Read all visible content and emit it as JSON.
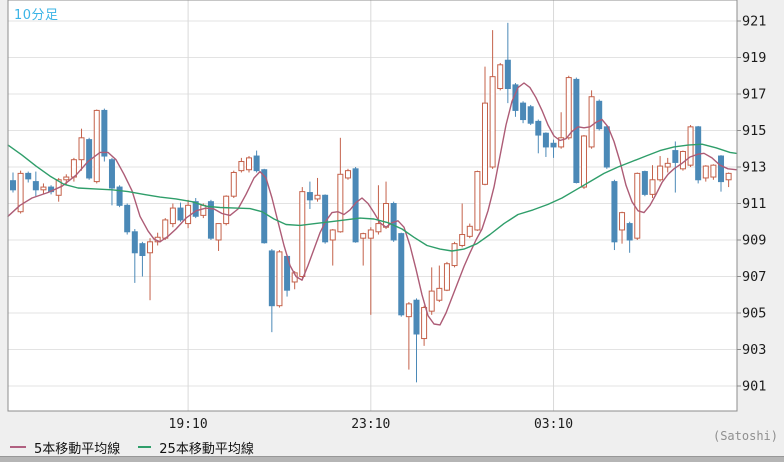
{
  "header": {
    "interval_label": "10分足"
  },
  "legend": {
    "ma5_label": "5本移動平均線",
    "ma5_color": "#b06080",
    "ma25_label": "25本移動平均線",
    "ma25_color": "#2f9e6a"
  },
  "footer": {
    "unit_label": "(Satoshi)"
  },
  "chart_data": {
    "type": "candlestick",
    "title": "10分足",
    "unit": "(Satoshi)",
    "grid": true,
    "legend_position": "bottom-left",
    "y_ticks": [
      921,
      919,
      917,
      915,
      913,
      911,
      909,
      907,
      905,
      903,
      901
    ],
    "ylim": [
      899.6,
      922.2
    ],
    "x_ticks": [
      {
        "label": "19:10",
        "index": 23
      },
      {
        "label": "23:10",
        "index": 47
      },
      {
        "label": "03:10",
        "index": 71
      }
    ],
    "colors": {
      "up": "#c4614a",
      "down": "#4b89b7",
      "ma5": "#ad5c76",
      "ma25": "#2f9e6a"
    },
    "candles_format": [
      "time",
      "open",
      "high",
      "low",
      "close"
    ],
    "candles": [
      [
        "15:20",
        912.25,
        912.7,
        911.6,
        911.75
      ],
      [
        "15:30",
        910.55,
        912.8,
        910.45,
        912.65
      ],
      [
        "15:40",
        912.65,
        912.75,
        912.15,
        912.35
      ],
      [
        "15:50",
        912.2,
        912.75,
        911.4,
        911.75
      ],
      [
        "16:00",
        911.75,
        912.1,
        911.5,
        911.9
      ],
      [
        "16:10",
        911.9,
        912.0,
        911.5,
        911.65
      ],
      [
        "16:20",
        911.45,
        912.4,
        911.1,
        912.3
      ],
      [
        "16:30",
        912.3,
        912.6,
        912.0,
        912.45
      ],
      [
        "16:40",
        912.45,
        913.5,
        912.2,
        913.4
      ],
      [
        "16:50",
        913.4,
        915.1,
        912.8,
        914.6
      ],
      [
        "17:00",
        914.5,
        914.6,
        912.3,
        912.4
      ],
      [
        "17:10",
        912.2,
        916.15,
        912.1,
        916.1
      ],
      [
        "17:20",
        916.1,
        916.2,
        913.3,
        913.6
      ],
      [
        "17:30",
        913.4,
        913.5,
        910.9,
        911.85
      ],
      [
        "17:40",
        911.9,
        912.0,
        910.8,
        910.9
      ],
      [
        "17:50",
        910.9,
        911.0,
        909.3,
        909.45
      ],
      [
        "18:00",
        909.45,
        909.6,
        906.65,
        908.3
      ],
      [
        "18:10",
        908.8,
        908.9,
        907.0,
        908.15
      ],
      [
        "18:20",
        908.3,
        909.1,
        905.7,
        908.9
      ],
      [
        "18:30",
        908.9,
        909.4,
        908.7,
        909.15
      ],
      [
        "18:40",
        909.1,
        910.2,
        909.0,
        910.1
      ],
      [
        "18:50",
        909.9,
        911.0,
        909.7,
        910.75
      ],
      [
        "19:00",
        910.75,
        911.05,
        910.0,
        910.1
      ],
      [
        "19:10",
        909.9,
        911.2,
        909.65,
        910.9
      ],
      [
        "19:20",
        911.1,
        911.3,
        910.2,
        910.3
      ],
      [
        "19:30",
        910.35,
        911.0,
        910.2,
        910.9
      ],
      [
        "19:40",
        911.1,
        911.2,
        909.0,
        909.1
      ],
      [
        "19:50",
        909.0,
        909.9,
        908.4,
        909.9
      ],
      [
        "20:00",
        909.9,
        911.45,
        909.8,
        911.4
      ],
      [
        "20:10",
        911.4,
        912.8,
        911.3,
        912.7
      ],
      [
        "20:20",
        912.8,
        913.5,
        912.7,
        913.3
      ],
      [
        "20:30",
        912.85,
        913.6,
        912.7,
        913.5
      ],
      [
        "20:40",
        913.6,
        913.9,
        912.7,
        912.8
      ],
      [
        "20:50",
        912.85,
        912.9,
        908.8,
        908.85
      ],
      [
        "21:00",
        908.4,
        908.5,
        903.95,
        905.4
      ],
      [
        "21:10",
        905.4,
        908.45,
        905.3,
        908.35
      ],
      [
        "21:20",
        908.1,
        908.2,
        905.9,
        906.25
      ],
      [
        "21:30",
        906.7,
        907.3,
        906.3,
        907.2
      ],
      [
        "21:40",
        907.0,
        911.9,
        906.9,
        911.65
      ],
      [
        "21:50",
        911.6,
        912.2,
        910.7,
        911.2
      ],
      [
        "22:00",
        911.25,
        912.4,
        911.1,
        911.45
      ],
      [
        "22:10",
        911.45,
        911.5,
        908.8,
        908.9
      ],
      [
        "22:20",
        909.0,
        909.6,
        907.6,
        909.55
      ],
      [
        "22:30",
        909.45,
        914.6,
        909.4,
        912.6
      ],
      [
        "22:40",
        912.4,
        912.9,
        912.3,
        912.8
      ],
      [
        "22:50",
        912.9,
        913.0,
        908.85,
        908.9
      ],
      [
        "23:00",
        909.1,
        909.4,
        907.6,
        909.35
      ],
      [
        "23:10",
        909.1,
        909.7,
        904.9,
        909.55
      ],
      [
        "23:20",
        909.45,
        912.0,
        909.3,
        909.9
      ],
      [
        "23:30",
        909.7,
        912.2,
        909.6,
        911.0
      ],
      [
        "23:40",
        911.0,
        911.1,
        908.9,
        909.0
      ],
      [
        "23:50",
        909.35,
        909.4,
        904.8,
        904.9
      ],
      [
        "00:00",
        904.8,
        905.6,
        901.9,
        905.5
      ],
      [
        "00:10",
        905.7,
        905.8,
        901.2,
        903.85
      ],
      [
        "00:20",
        903.6,
        905.4,
        903.2,
        905.3
      ],
      [
        "00:30",
        905.1,
        907.5,
        904.9,
        906.2
      ],
      [
        "00:40",
        905.7,
        907.6,
        905.6,
        906.35
      ],
      [
        "00:50",
        906.25,
        907.8,
        906.2,
        907.7
      ],
      [
        "01:00",
        907.6,
        908.9,
        907.5,
        908.8
      ],
      [
        "01:10",
        908.7,
        911.0,
        908.6,
        909.3
      ],
      [
        "01:20",
        909.2,
        909.9,
        909.1,
        909.75
      ],
      [
        "01:30",
        909.55,
        912.8,
        909.5,
        912.75
      ],
      [
        "01:40",
        912.05,
        918.5,
        912.0,
        916.5
      ],
      [
        "01:50",
        913.0,
        920.5,
        912.9,
        917.95
      ],
      [
        "02:00",
        917.3,
        918.7,
        917.2,
        918.6
      ],
      [
        "02:10",
        918.85,
        920.9,
        916.5,
        917.3
      ],
      [
        "02:20",
        917.5,
        917.6,
        915.75,
        916.1
      ],
      [
        "02:30",
        916.5,
        916.6,
        915.4,
        915.6
      ],
      [
        "02:40",
        916.3,
        916.4,
        915.3,
        915.4
      ],
      [
        "02:50",
        915.5,
        915.6,
        913.75,
        914.75
      ],
      [
        "03:00",
        914.85,
        914.9,
        913.55,
        914.1
      ],
      [
        "03:10",
        914.3,
        914.5,
        913.5,
        914.1
      ],
      [
        "03:20",
        914.1,
        916.0,
        914.0,
        914.6
      ],
      [
        "03:30",
        914.6,
        918.0,
        914.5,
        917.9
      ],
      [
        "03:40",
        917.8,
        917.9,
        912.1,
        912.15
      ],
      [
        "03:50",
        911.9,
        914.75,
        911.8,
        914.7
      ],
      [
        "04:00",
        914.1,
        917.2,
        914.0,
        916.85
      ],
      [
        "04:10",
        916.6,
        916.7,
        915.0,
        915.1
      ],
      [
        "04:20",
        915.2,
        915.3,
        912.9,
        913.0
      ],
      [
        "04:30",
        912.2,
        912.3,
        908.45,
        908.9
      ],
      [
        "04:40",
        909.55,
        910.55,
        908.8,
        910.5
      ],
      [
        "04:50",
        909.9,
        910.0,
        908.3,
        909.0
      ],
      [
        "05:00",
        909.1,
        912.7,
        909.0,
        912.65
      ],
      [
        "05:10",
        912.75,
        912.8,
        911.4,
        911.5
      ],
      [
        "05:20",
        911.5,
        913.1,
        911.3,
        912.3
      ],
      [
        "05:30",
        912.3,
        913.6,
        912.2,
        913.05
      ],
      [
        "05:40",
        913.0,
        913.5,
        912.7,
        913.2
      ],
      [
        "05:50",
        913.9,
        914.4,
        911.6,
        913.25
      ],
      [
        "06:00",
        912.9,
        913.9,
        912.8,
        913.85
      ],
      [
        "06:10",
        913.1,
        915.3,
        913.0,
        915.2
      ],
      [
        "06:20",
        915.2,
        915.25,
        912.1,
        912.3
      ],
      [
        "06:30",
        912.4,
        913.1,
        912.2,
        913.05
      ],
      [
        "06:40",
        912.45,
        913.15,
        912.3,
        913.1
      ],
      [
        "06:50",
        913.6,
        913.65,
        911.65,
        912.2
      ],
      [
        "07:00",
        912.3,
        912.7,
        911.9,
        912.65
      ]
    ],
    "ma_points_format": "[x_px, price]",
    "series": [
      {
        "name": "5本移動平均線",
        "kind": "ma5",
        "points": [
          [
            8,
            910.3
          ],
          [
            20,
            910.9
          ],
          [
            32,
            911.3
          ],
          [
            48,
            911.6
          ],
          [
            62,
            911.95
          ],
          [
            76,
            912.55
          ],
          [
            88,
            913.3
          ],
          [
            100,
            913.8
          ],
          [
            108,
            913.8
          ],
          [
            116,
            913.4
          ],
          [
            124,
            912.6
          ],
          [
            132,
            911.7
          ],
          [
            140,
            910.3
          ],
          [
            148,
            909.5
          ],
          [
            154,
            909.05
          ],
          [
            160,
            908.9
          ],
          [
            168,
            909.2
          ],
          [
            176,
            909.6
          ],
          [
            186,
            910.2
          ],
          [
            196,
            910.6
          ],
          [
            206,
            910.75
          ],
          [
            214,
            910.7
          ],
          [
            222,
            910.45
          ],
          [
            230,
            910.35
          ],
          [
            238,
            910.7
          ],
          [
            246,
            911.5
          ],
          [
            254,
            912.4
          ],
          [
            260,
            912.75
          ],
          [
            266,
            912.4
          ],
          [
            272,
            911.3
          ],
          [
            278,
            910.0
          ],
          [
            284,
            908.7
          ],
          [
            290,
            907.6
          ],
          [
            296,
            907.0
          ],
          [
            302,
            906.8
          ],
          [
            308,
            907.6
          ],
          [
            314,
            908.5
          ],
          [
            320,
            909.4
          ],
          [
            326,
            910.05
          ],
          [
            332,
            910.5
          ],
          [
            338,
            910.55
          ],
          [
            344,
            910.4
          ],
          [
            350,
            910.65
          ],
          [
            356,
            911.05
          ],
          [
            362,
            911.3
          ],
          [
            368,
            911.0
          ],
          [
            374,
            910.5
          ],
          [
            380,
            909.95
          ],
          [
            386,
            909.7
          ],
          [
            392,
            909.95
          ],
          [
            398,
            910.05
          ],
          [
            404,
            909.7
          ],
          [
            410,
            908.7
          ],
          [
            416,
            907.4
          ],
          [
            422,
            906.0
          ],
          [
            428,
            904.85
          ],
          [
            434,
            904.4
          ],
          [
            440,
            904.35
          ],
          [
            446,
            905.0
          ],
          [
            452,
            905.85
          ],
          [
            458,
            906.7
          ],
          [
            464,
            907.55
          ],
          [
            470,
            908.3
          ],
          [
            476,
            909.0
          ],
          [
            482,
            909.6
          ],
          [
            488,
            910.6
          ],
          [
            494,
            911.9
          ],
          [
            500,
            913.6
          ],
          [
            506,
            915.3
          ],
          [
            512,
            916.6
          ],
          [
            518,
            917.35
          ],
          [
            524,
            917.6
          ],
          [
            530,
            917.35
          ],
          [
            536,
            916.8
          ],
          [
            542,
            916.1
          ],
          [
            548,
            915.3
          ],
          [
            554,
            914.7
          ],
          [
            560,
            914.45
          ],
          [
            566,
            914.55
          ],
          [
            572,
            914.95
          ],
          [
            578,
            915.2
          ],
          [
            584,
            915.15
          ],
          [
            590,
            915.2
          ],
          [
            596,
            915.45
          ],
          [
            602,
            915.6
          ],
          [
            608,
            915.2
          ],
          [
            614,
            914.4
          ],
          [
            620,
            913.3
          ],
          [
            626,
            912.0
          ],
          [
            632,
            911.1
          ],
          [
            638,
            910.6
          ],
          [
            644,
            910.5
          ],
          [
            650,
            910.9
          ],
          [
            656,
            911.5
          ],
          [
            662,
            912.15
          ],
          [
            668,
            912.6
          ],
          [
            674,
            912.9
          ],
          [
            682,
            913.2
          ],
          [
            690,
            913.55
          ],
          [
            698,
            913.7
          ],
          [
            704,
            913.75
          ],
          [
            712,
            913.5
          ],
          [
            720,
            913.1
          ],
          [
            728,
            912.9
          ],
          [
            736,
            912.85
          ]
        ]
      },
      {
        "name": "25本移動平均線",
        "kind": "ma25",
        "points": [
          [
            8,
            914.2
          ],
          [
            22,
            913.65
          ],
          [
            36,
            913.05
          ],
          [
            50,
            912.5
          ],
          [
            64,
            912.05
          ],
          [
            78,
            911.85
          ],
          [
            95,
            911.8
          ],
          [
            112,
            911.75
          ],
          [
            128,
            911.65
          ],
          [
            144,
            911.5
          ],
          [
            160,
            911.35
          ],
          [
            176,
            911.25
          ],
          [
            192,
            911.1
          ],
          [
            206,
            910.85
          ],
          [
            220,
            910.78
          ],
          [
            236,
            910.75
          ],
          [
            250,
            910.72
          ],
          [
            262,
            910.55
          ],
          [
            274,
            910.15
          ],
          [
            286,
            909.85
          ],
          [
            300,
            909.8
          ],
          [
            315,
            909.9
          ],
          [
            330,
            910.0
          ],
          [
            345,
            910.1
          ],
          [
            360,
            910.2
          ],
          [
            374,
            910.15
          ],
          [
            388,
            909.95
          ],
          [
            402,
            909.6
          ],
          [
            414,
            909.15
          ],
          [
            427,
            908.7
          ],
          [
            440,
            908.5
          ],
          [
            452,
            908.4
          ],
          [
            464,
            908.5
          ],
          [
            477,
            908.8
          ],
          [
            490,
            909.3
          ],
          [
            504,
            909.9
          ],
          [
            518,
            910.4
          ],
          [
            533,
            910.65
          ],
          [
            548,
            910.95
          ],
          [
            562,
            911.3
          ],
          [
            576,
            911.75
          ],
          [
            590,
            912.2
          ],
          [
            604,
            912.65
          ],
          [
            618,
            913.0
          ],
          [
            632,
            913.3
          ],
          [
            646,
            913.6
          ],
          [
            660,
            913.9
          ],
          [
            674,
            914.1
          ],
          [
            688,
            914.2
          ],
          [
            702,
            914.25
          ],
          [
            716,
            914.05
          ],
          [
            730,
            913.8
          ],
          [
            736,
            913.75
          ]
        ]
      }
    ]
  }
}
